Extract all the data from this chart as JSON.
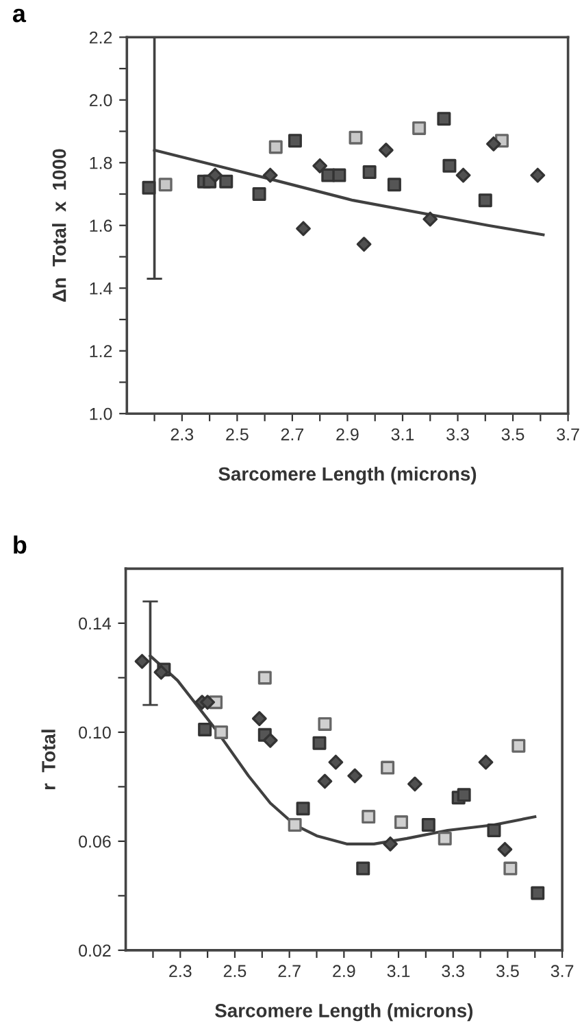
{
  "chart_data": [
    {
      "type": "scatter",
      "title": "a",
      "xlabel": "Sarcomere Length (microns)",
      "ylabel": "Δn  Total  x  1000",
      "xlim": [
        2.1,
        3.7
      ],
      "ylim": [
        1.0,
        2.2
      ],
      "xticks": [
        {
          "value": 2.2,
          "label": null
        },
        2.3,
        {
          "value": 2.4,
          "label": null
        },
        2.5,
        {
          "value": 2.6,
          "label": null
        },
        2.7,
        {
          "value": 2.8,
          "label": null
        },
        2.9,
        {
          "value": 3.0,
          "label": null
        },
        3.1,
        {
          "value": 3.2,
          "label": null
        },
        3.3,
        {
          "value": 3.4,
          "label": null
        },
        3.5,
        {
          "value": 3.6,
          "label": null
        },
        3.7
      ],
      "yticks": [
        {
          "value": 1,
          "label": "1.0"
        },
        {
          "value": 1.1,
          "label": null
        },
        1.2,
        {
          "value": 1.3,
          "label": null
        },
        1.4,
        {
          "value": 1.5,
          "label": null
        },
        1.6,
        {
          "value": 1.7,
          "label": null
        },
        1.8,
        {
          "value": 1.9,
          "label": null
        },
        {
          "value": 2,
          "label": "2.0"
        },
        {
          "value": 2.1,
          "label": null
        },
        2.2
      ],
      "grid": false,
      "legend": false,
      "series": [
        {
          "marker": "square",
          "color": "#555555",
          "x": [
            2.18,
            2.38,
            2.4,
            2.46,
            2.58,
            2.71,
            2.83,
            2.87,
            2.98,
            3.07,
            3.25,
            3.27,
            3.4
          ],
          "values": [
            1.72,
            1.74,
            1.74,
            1.74,
            1.7,
            1.87,
            1.76,
            1.76,
            1.77,
            1.73,
            1.94,
            1.79,
            1.68
          ]
        },
        {
          "marker": "square",
          "color": "#c8c8c8",
          "x": [
            2.24,
            2.64,
            2.93,
            3.16,
            3.46
          ],
          "values": [
            1.73,
            1.85,
            1.88,
            1.91,
            1.87
          ]
        },
        {
          "marker": "diamond",
          "color": "#505050",
          "x": [
            2.42,
            2.62,
            2.74,
            2.8,
            2.96,
            3.04,
            3.2,
            3.32,
            3.43,
            3.59
          ],
          "values": [
            1.76,
            1.76,
            1.59,
            1.79,
            1.54,
            1.84,
            1.62,
            1.76,
            1.86,
            1.76
          ]
        },
        {
          "type": "line",
          "color": "#404040",
          "marker": "none",
          "x": [
            2.2,
            2.61,
            2.92,
            3.41,
            3.61
          ],
          "values": [
            1.84,
            1.75,
            1.68,
            1.6,
            1.57
          ],
          "errors": [
            [
              1.43,
              2.2
            ],
            null,
            null,
            null,
            null
          ]
        }
      ]
    },
    {
      "type": "scatter",
      "title": "b",
      "xlabel": "Sarcomere Length (microns)",
      "ylabel": "r  Total",
      "xlim": [
        2.1,
        3.7
      ],
      "ylim": [
        0.02,
        0.16
      ],
      "xticks": [
        {
          "value": 2.2,
          "label": null
        },
        2.3,
        {
          "value": 2.4,
          "label": null
        },
        2.5,
        {
          "value": 2.6,
          "label": null
        },
        2.7,
        {
          "value": 2.8,
          "label": null
        },
        2.9,
        {
          "value": 3.0,
          "label": null
        },
        3.1,
        {
          "value": 3.2,
          "label": null
        },
        3.3,
        {
          "value": 3.4,
          "label": null
        },
        3.5,
        {
          "value": 3.6,
          "label": null
        },
        3.7
      ],
      "yticks": [
        0.02,
        {
          "value": 0.04,
          "label": null
        },
        0.06,
        {
          "value": 0.08,
          "label": null
        },
        {
          "value": 0.1,
          "label": "0.10"
        },
        {
          "value": 0.12,
          "label": null
        },
        0.14
      ],
      "grid": false,
      "legend": false,
      "series": [
        {
          "marker": "square",
          "color": "#555555",
          "x": [
            2.24,
            2.39,
            2.61,
            2.75,
            2.81,
            2.97,
            3.21,
            3.32,
            3.34,
            3.45,
            3.61
          ],
          "values": [
            0.123,
            0.101,
            0.099,
            0.072,
            0.096,
            0.05,
            0.066,
            0.076,
            0.077,
            0.064,
            0.041
          ]
        },
        {
          "marker": "square",
          "color": "#d0d0d0",
          "x": [
            2.43,
            2.45,
            2.61,
            2.72,
            2.83,
            2.99,
            3.06,
            3.11,
            3.27,
            3.51,
            3.54
          ],
          "values": [
            0.111,
            0.1,
            0.12,
            0.066,
            0.103,
            0.069,
            0.087,
            0.067,
            0.061,
            0.05,
            0.095
          ]
        },
        {
          "marker": "diamond",
          "color": "#505050",
          "x": [
            2.16,
            2.23,
            2.38,
            2.4,
            2.59,
            2.63,
            2.83,
            2.87,
            2.94,
            3.07,
            3.16,
            3.42,
            3.49
          ],
          "values": [
            0.126,
            0.122,
            0.111,
            0.111,
            0.105,
            0.097,
            0.082,
            0.089,
            0.084,
            0.059,
            0.081,
            0.089,
            0.057
          ]
        },
        {
          "type": "line",
          "color": "#404040",
          "marker": "none",
          "x": [
            2.19,
            2.29,
            2.43,
            2.55,
            2.63,
            2.72,
            2.8,
            2.91,
            3.01,
            3.13,
            3.28,
            3.45,
            3.6
          ],
          "values": [
            0.128,
            0.119,
            0.101,
            0.084,
            0.074,
            0.066,
            0.062,
            0.059,
            0.059,
            0.061,
            0.064,
            0.066,
            0.069
          ],
          "errors": [
            [
              0.11,
              0.148
            ],
            null,
            null,
            null,
            null,
            null,
            null,
            null,
            null,
            null,
            null,
            null,
            null
          ]
        }
      ]
    }
  ]
}
